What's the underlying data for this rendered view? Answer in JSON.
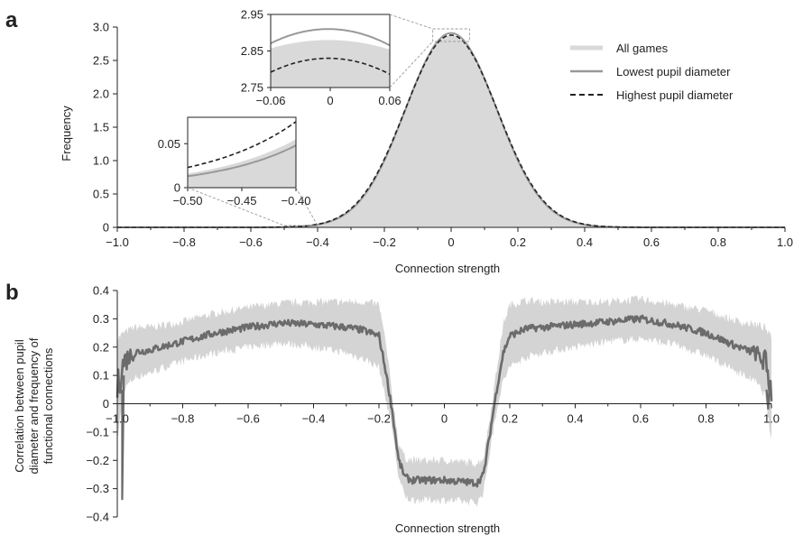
{
  "panel_labels": {
    "a": "a",
    "b": "b"
  },
  "colors": {
    "all_games": "#d9d9d9",
    "lowest": "#999999",
    "highest": "#222222",
    "corr_line": "#6b6b6b",
    "corr_band": "#d4d4d4",
    "axis": "#222222"
  },
  "chart_data": [
    {
      "id": "panel-a",
      "type": "area",
      "xlabel": "Connection strength",
      "ylabel": "Frequency",
      "xlim": [
        -1.0,
        1.0
      ],
      "ylim": [
        0,
        3.0
      ],
      "xticks": [
        -1.0,
        -0.8,
        -0.6,
        -0.4,
        -0.2,
        0,
        0.2,
        0.4,
        0.6,
        0.8,
        1.0
      ],
      "xtick_labels": [
        "−1.0",
        "−0.8",
        "−0.6",
        "−0.4",
        "−0.2",
        "0",
        "0.2",
        "0.4",
        "0.6",
        "0.8",
        "1.0"
      ],
      "yticks": [
        0,
        0.5,
        1.0,
        1.5,
        2.0,
        2.5,
        3.0
      ],
      "ytick_labels": [
        "0",
        "0.5",
        "1.0",
        "1.5",
        "2.0",
        "2.5",
        "3.0"
      ],
      "legend": {
        "position": "top-right",
        "entries": [
          "All games",
          "Lowest pupil diameter",
          "Highest pupil diameter"
        ]
      },
      "series": [
        {
          "name": "All games",
          "style": "filled",
          "peak": 2.88,
          "center": 0,
          "sd": 0.138
        },
        {
          "name": "Lowest pupil diameter",
          "style": "solid",
          "peak": 2.91,
          "center": 0,
          "sd": 0.137
        },
        {
          "name": "Highest pupil diameter",
          "style": "dashed",
          "peak": 2.88,
          "center": 0,
          "sd": 0.139
        }
      ],
      "insets": [
        {
          "id": "inset-peak",
          "xlim": [
            -0.06,
            0.06
          ],
          "ylim": [
            2.75,
            2.95
          ],
          "xticks": [
            -0.06,
            0,
            0.06
          ],
          "xtick_labels": [
            "−0.06",
            "0",
            "0.06"
          ],
          "yticks": [
            2.75,
            2.85,
            2.95
          ],
          "ytick_labels": [
            "2.75",
            "2.85",
            "2.95"
          ]
        },
        {
          "id": "inset-tail",
          "xlim": [
            -0.5,
            -0.4
          ],
          "ylim": [
            0,
            0.08
          ],
          "xticks": [
            -0.5,
            -0.45,
            -0.4
          ],
          "xtick_labels": [
            "−0.50",
            "−0.45",
            "−0.40"
          ],
          "yticks": [
            0,
            0.05
          ],
          "ytick_labels": [
            "0",
            "0.05"
          ],
          "series_end_values": {
            "All games": 0.055,
            "Lowest pupil diameter": 0.048,
            "Highest pupil diameter": 0.075
          },
          "series_start_values": {
            "All games": 0.016,
            "Lowest pupil diameter": 0.013,
            "Highest pupil diameter": 0.023
          }
        }
      ]
    },
    {
      "id": "panel-b",
      "type": "line",
      "xlabel": "Connection strength",
      "ylabel": "Correlation between pupil diameter and frequency of functional connections",
      "ylabel_lines": [
        "Correlation between pupil",
        "diameter and frequency of",
        "functional connections"
      ],
      "xlim": [
        -1.0,
        1.0
      ],
      "ylim": [
        -0.4,
        0.4
      ],
      "xticks": [
        -1.0,
        -0.8,
        -0.6,
        -0.4,
        -0.2,
        0,
        0.2,
        0.4,
        0.6,
        0.8,
        1.0
      ],
      "xtick_labels": [
        "−1.0",
        "−0.8",
        "−0.6",
        "−0.4",
        "−0.2",
        "0",
        "0.2",
        "0.4",
        "0.6",
        "0.8",
        "1.0"
      ],
      "yticks": [
        -0.4,
        -0.3,
        -0.2,
        -0.1,
        0,
        0.1,
        0.2,
        0.3,
        0.4
      ],
      "ytick_labels": [
        "−0.4",
        "−0.3",
        "−0.2",
        "−0.1",
        "0",
        "0.1",
        "0.2",
        "0.3",
        "0.4"
      ],
      "x": [
        -1.0,
        -0.98,
        -0.95,
        -0.9,
        -0.8,
        -0.7,
        -0.6,
        -0.5,
        -0.4,
        -0.3,
        -0.25,
        -0.2,
        -0.18,
        -0.16,
        -0.14,
        -0.12,
        -0.1,
        0,
        0.1,
        0.12,
        0.14,
        0.16,
        0.18,
        0.2,
        0.25,
        0.3,
        0.4,
        0.5,
        0.6,
        0.7,
        0.8,
        0.9,
        0.95,
        0.98,
        1.0
      ],
      "mean": [
        0.05,
        0.15,
        0.18,
        0.19,
        0.22,
        0.25,
        0.27,
        0.285,
        0.28,
        0.27,
        0.26,
        0.24,
        0.12,
        -0.02,
        -0.2,
        -0.26,
        -0.27,
        -0.27,
        -0.28,
        -0.25,
        -0.1,
        0.05,
        0.18,
        0.24,
        0.265,
        0.27,
        0.28,
        0.29,
        0.3,
        0.28,
        0.25,
        0.2,
        0.18,
        0.15,
        0.05
      ],
      "band_half_width": [
        0.18,
        0.1,
        0.09,
        0.08,
        0.07,
        0.07,
        0.07,
        0.07,
        0.08,
        0.09,
        0.1,
        0.11,
        0.1,
        0.06,
        0.06,
        0.07,
        0.07,
        0.07,
        0.07,
        0.06,
        0.06,
        0.07,
        0.1,
        0.11,
        0.1,
        0.09,
        0.08,
        0.07,
        0.07,
        0.07,
        0.08,
        0.09,
        0.1,
        0.12,
        0.18
      ]
    }
  ]
}
